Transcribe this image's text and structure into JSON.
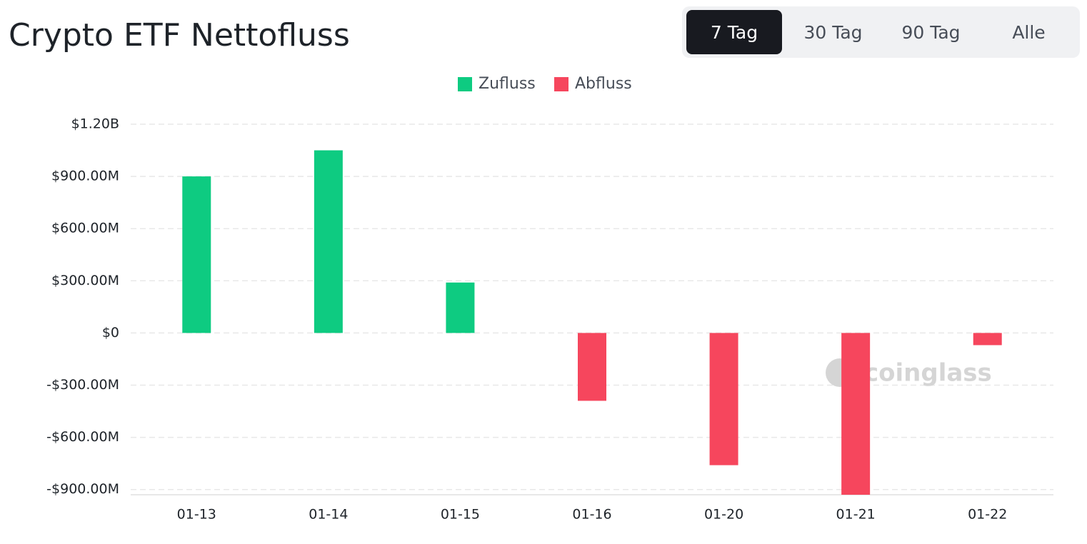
{
  "chart_data": {
    "type": "bar",
    "title": "Crypto ETF Nettofluss",
    "categories": [
      "01-13",
      "01-14",
      "01-15",
      "01-16",
      "01-20",
      "01-21",
      "01-22"
    ],
    "series": [
      {
        "name": "Zufluss",
        "color": "#0ecb81",
        "values": [
          900000000,
          1050000000,
          290000000,
          null,
          null,
          null,
          null
        ]
      },
      {
        "name": "Abfluss",
        "color": "#f6465d",
        "values": [
          null,
          null,
          null,
          -390000000,
          -760000000,
          -930000000,
          -70000000
        ]
      }
    ],
    "ylim": [
      -930000000,
      1200000000
    ],
    "yticks": [
      {
        "value": 1200000000,
        "label": "$1.20B"
      },
      {
        "value": 900000000,
        "label": "$900.00M"
      },
      {
        "value": 600000000,
        "label": "$600.00M"
      },
      {
        "value": 300000000,
        "label": "$300.00M"
      },
      {
        "value": 0,
        "label": "$0"
      },
      {
        "value": -300000000,
        "label": "-$300.00M"
      },
      {
        "value": -600000000,
        "label": "-$600.00M"
      },
      {
        "value": -900000000,
        "label": "-$900.00M"
      }
    ],
    "grid": true,
    "legend": "top",
    "watermark": "coinglass"
  },
  "range_buttons": [
    "7 Tag",
    "30 Tag",
    "90 Tag",
    "Alle"
  ]
}
